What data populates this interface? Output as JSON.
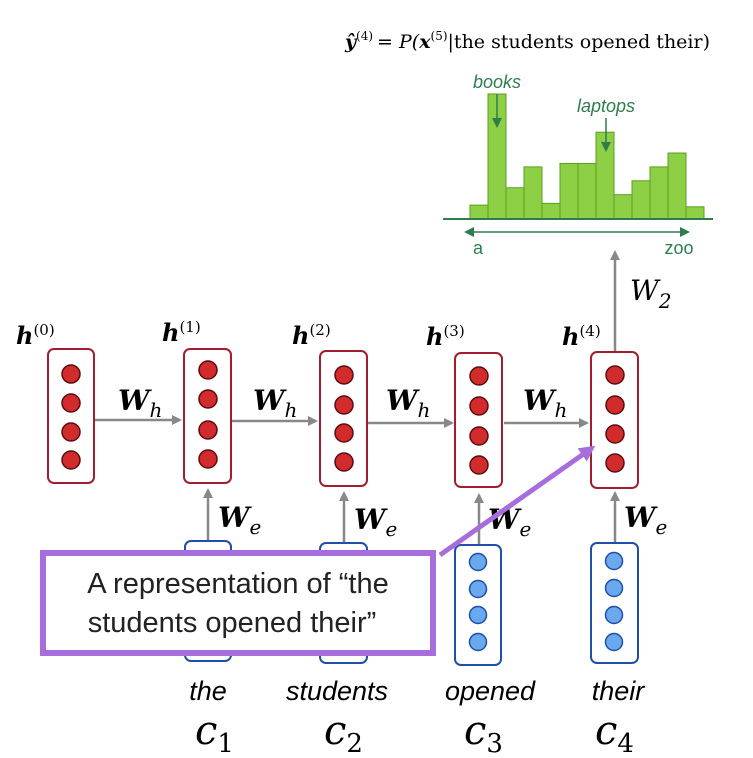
{
  "formula": {
    "lhs": "ŷ",
    "lhs_sup": "(4)",
    "eq": "= P(",
    "x": "x",
    "x_sup": "(5)",
    "cond": "|the students opened their)"
  },
  "histogram": {
    "values": [
      0.08,
      0.72,
      0.18,
      0.3,
      0.09,
      0.32,
      0.32,
      0.5,
      0.14,
      0.22,
      0.3,
      0.38,
      0.07
    ],
    "bar_color": "#8dd045",
    "bar_edge": "#5a9e1e",
    "axis_color": "#2e7d4f",
    "label_books": "books",
    "label_laptops": "laptops",
    "axis_start": "a",
    "axis_end": "zoo"
  },
  "colors": {
    "hidden_border": "#a01e2e",
    "hidden_dot": "#d12b2b",
    "embed_border": "#1f4fa8",
    "embed_dot": "#6aa9ee",
    "arrow": "#888888",
    "callout_border": "#a86ddc",
    "callout_arrow": "#a86ddc"
  },
  "hidden_states": [
    {
      "label": "h",
      "sup": "(0)"
    },
    {
      "label": "h",
      "sup": "(1)"
    },
    {
      "label": "h",
      "sup": "(2)"
    },
    {
      "label": "h",
      "sup": "(3)"
    },
    {
      "label": "h",
      "sup": "(4)"
    }
  ],
  "wh_label": {
    "main": "W",
    "sub": "h"
  },
  "we_label": {
    "main": "W",
    "sub": "e"
  },
  "w2_label": {
    "main": "W",
    "sub": "2"
  },
  "words": [
    "the",
    "students",
    "opened",
    "their"
  ],
  "embeddings": [
    {
      "main": "c",
      "sub": "1"
    },
    {
      "main": "c",
      "sub": "2"
    },
    {
      "main": "c",
      "sub": "3"
    },
    {
      "main": "c",
      "sub": "4"
    }
  ],
  "callout": {
    "line1": "A representation of “the",
    "line2": "students opened their”"
  }
}
